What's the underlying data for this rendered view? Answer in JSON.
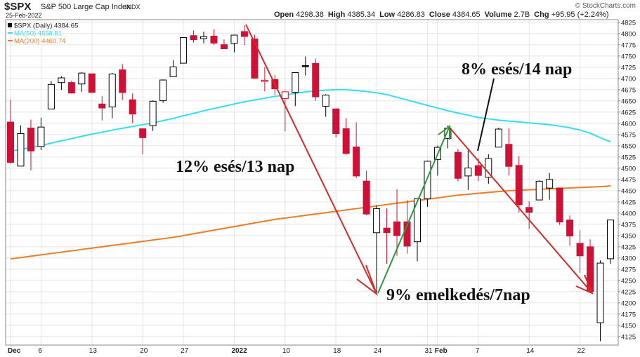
{
  "chart_data": {
    "type": "candlestick",
    "header": {
      "symbol": "$SPX",
      "name": "S&P 500 Large Cap Index",
      "exchange": "INDX",
      "date": "25-Feb-2022",
      "copyright": "© StockCharts.com",
      "stats": [
        {
          "label": "Open",
          "value": "4298.38"
        },
        {
          "label": "High",
          "value": "4385.34"
        },
        {
          "label": "Low",
          "value": "4286.83"
        },
        {
          "label": "Close",
          "value": "4384.65"
        },
        {
          "label": "Volume",
          "value": "2.7B"
        },
        {
          "label": "Chg",
          "value": "+95.95 (+2.24%)"
        }
      ]
    },
    "price_name": "$SPX (Daily) 4384.65",
    "up_color": "#000000",
    "down_color": "#cc1236",
    "categories": [
      "Dec",
      null,
      null,
      "6",
      null,
      null,
      null,
      null,
      "13",
      null,
      null,
      null,
      null,
      "20",
      null,
      null,
      null,
      "27",
      null,
      null,
      null,
      null,
      "2022",
      null,
      null,
      null,
      null,
      "10",
      null,
      null,
      null,
      null,
      "18",
      null,
      null,
      null,
      "24",
      null,
      null,
      null,
      null,
      "31",
      "Feb",
      null,
      null,
      null,
      "7",
      null,
      null,
      null,
      null,
      "14",
      null,
      null,
      null,
      null,
      "22",
      null,
      null,
      null
    ],
    "open": [
      4602.8,
      4504.7,
      4589.5,
      4548.4,
      4631.97,
      4690.86,
      4691,
      4687.64,
      4710.3,
      4642.99,
      4636.46,
      4719.13,
      4652.5,
      4587.9,
      4594.96,
      4650.36,
      4703.96,
      4733.99,
      4795.49,
      4788.64,
      4794.23,
      4775.21,
      4778.14,
      4804.51,
      4787.99,
      4693.39,
      4697.66,
      4655.34,
      4669.14,
      4728.59,
      4733.56,
      4637.99,
      4632.24,
      4588.03,
      4547.35,
      4471.38,
      4356.32,
      4366.64,
      4380.58,
      4380.58,
      4336.19,
      4431.79,
      4519.57,
      4566.39,
      4535.41,
      4482.79,
      4505.75,
      4480.02,
      4547,
      4553.24,
      4506.27,
      4412.61,
      4429.28,
      4455.75,
      4456.06,
      4384.57,
      4332.74,
      4324.93,
      4155.77,
      4298.38
    ],
    "high": [
      4652.9,
      4595.5,
      4608.0,
      4612.6,
      4694.04,
      4705.06,
      4695.26,
      4713.57,
      4710.3,
      4660.47,
      4712.6,
      4731.99,
      4666.7,
      4587.9,
      4651.14,
      4697.67,
      4740.74,
      4791.49,
      4807.02,
      4804.06,
      4808.93,
      4786.83,
      4796.64,
      4818.62,
      4797.7,
      4725.01,
      4707.95,
      4673.02,
      4714.13,
      4748.83,
      4744.13,
      4665.13,
      4632.24,
      4611.55,
      4602.11,
      4494.52,
      4417.35,
      4411.01,
      4453.23,
      4428.74,
      4432.72,
      4516.89,
      4550.49,
      4595.31,
      4542.88,
      4539.66,
      4521.86,
      4531.32,
      4590.03,
      4588.92,
      4526.33,
      4426.22,
      4472.77,
      4489.55,
      4456.06,
      4394.6,
      4362.12,
      4341.51,
      4294.73,
      4385.34
    ],
    "low": [
      4510.3,
      4504.7,
      4495.1,
      4540.5,
      4631.97,
      4674.52,
      4665.98,
      4670.24,
      4667.6,
      4606.52,
      4611.22,
      4651.89,
      4600.22,
      4531.1,
      4583.16,
      4645.53,
      4703.96,
      4733.99,
      4780.04,
      4778.08,
      4775.33,
      4765.75,
      4758.17,
      4774.27,
      4699.44,
      4671.26,
      4662.74,
      4582.24,
      4638.27,
      4706.71,
      4650.29,
      4614.75,
      4568.7,
      4530.2,
      4477.95,
      4395.34,
      4222.62,
      4287.11,
      4304.8,
      4309.5,
      4292.46,
      4414.02,
      4483.53,
      4544.32,
      4470.39,
      4451.5,
      4471.47,
      4465.4,
      4547,
      4484.31,
      4401.41,
      4364.84,
      4429.28,
      4429.68,
      4373.81,
      4327.22,
      4267.11,
      4221.51,
      4114.65,
      4286.83
    ],
    "close": [
      4513.0,
      4577.1,
      4538.4,
      4591.7,
      4686.75,
      4701.21,
      4667.45,
      4712.02,
      4668.97,
      4634.09,
      4709.85,
      4668.67,
      4620.64,
      4568.02,
      4649.23,
      4696.56,
      4725.79,
      4791.19,
      4786.35,
      4793.06,
      4778.73,
      4766.18,
      4796.56,
      4793.54,
      4700.58,
      4696.05,
      4677.03,
      4670.29,
      4713.07,
      4726.35,
      4659.03,
      4662.85,
      4577.11,
      4532.76,
      4482.73,
      4397.94,
      4410.13,
      4356.45,
      4349.93,
      4326.51,
      4431.85,
      4515.55,
      4546.54,
      4589.38,
      4477.44,
      4500.53,
      4483.87,
      4521.54,
      4587.18,
      4504.08,
      4418.64,
      4401.67,
      4471.07,
      4475.01,
      4380.26,
      4348.87,
      4304.76,
      4225.5,
      4288.7,
      4384.65
    ],
    "series": [
      {
        "name": "MA(50) 4558.81",
        "color": "#33e0f0",
        "values": [
          4538,
          4542,
          4546,
          4550,
          4556,
          4561,
          4566,
          4571,
          4576,
          4580,
          4585,
          4589,
          4593,
          4597,
          4601,
          4606,
          4611,
          4617,
          4622,
          4628,
          4633,
          4638,
          4643,
          4648,
          4652,
          4656,
          4660,
          4663,
          4667,
          4670,
          4672,
          4674,
          4675,
          4675,
          4673,
          4671,
          4668,
          4664,
          4658,
          4652,
          4646,
          4640,
          4634,
          4628,
          4623,
          4618,
          4613,
          4610,
          4607,
          4605,
          4603,
          4601,
          4599,
          4597,
          4594,
          4590,
          4585,
          4578,
          4568,
          4558.81
        ]
      },
      {
        "name": "MA(200) 4460.74",
        "color": "#f07c24",
        "values": [
          4298,
          4301,
          4304,
          4307,
          4310,
          4313,
          4316,
          4319,
          4322,
          4325,
          4328,
          4331,
          4334,
          4337,
          4340,
          4343,
          4346,
          4350,
          4354,
          4358,
          4362,
          4366,
          4370,
          4374,
          4378,
          4382,
          4386,
          4389,
          4392,
          4395,
          4398,
          4401,
          4404,
          4407,
          4410,
          4413,
          4416,
          4419,
          4422,
          4425,
          4428,
          4431,
          4434,
          4437,
          4440,
          4442,
          4444,
          4446,
          4448,
          4450,
          4451,
          4452,
          4453,
          4454,
          4455,
          4456,
          4457,
          4458,
          4459,
          4460.74
        ]
      }
    ],
    "annotations": [
      "12% esés/13 nap",
      "8% esés/14 nap",
      "9% emelkedés/7nap"
    ],
    "ylim": [
      4106,
      4831
    ],
    "yticks": [
      4125,
      4150,
      4175,
      4200,
      4225,
      4250,
      4275,
      4300,
      4325,
      4350,
      4375,
      4400,
      4425,
      4450,
      4475,
      4500,
      4525,
      4550,
      4575,
      4600,
      4625,
      4650,
      4675,
      4700,
      4725,
      4750,
      4775,
      4800,
      4825
    ],
    "grid": true
  }
}
